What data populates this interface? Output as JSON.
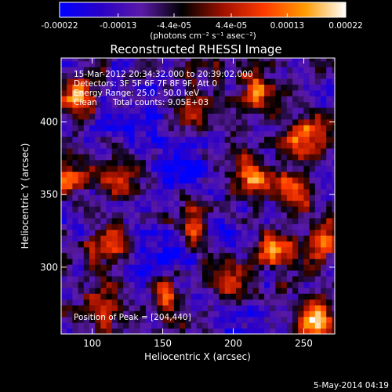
{
  "chart_data": {
    "type": "heatmap",
    "title": "Reconstructed RHESSI Image",
    "xlabel": "Heliocentric X (arcsec)",
    "ylabel": "Heliocentric Y (arcsec)",
    "xlim": [
      78,
      272
    ],
    "ylim": [
      254,
      444
    ],
    "x_ticks": [
      100,
      150,
      200,
      250
    ],
    "y_ticks": [
      300,
      350,
      400
    ],
    "colorbar": {
      "range": [
        -0.00022,
        0.00022
      ],
      "tick_values": [
        -0.00022,
        -0.00013,
        -4.4e-05,
        4.4e-05,
        0.00013,
        0.00022
      ],
      "tick_labels": [
        "-0.00022",
        "-0.00013",
        "-4.4e-05",
        "4.4e-05",
        "0.00013",
        "0.00022"
      ],
      "unit_label": "(photons cm⁻² s⁻¹ asec⁻²)",
      "colors": [
        "#0000ff",
        "#2a00c8",
        "#5a1aa8",
        "#000000",
        "#a01000",
        "#ff3a00",
        "#ff9a00",
        "#ffffff"
      ]
    },
    "annotations": {
      "time_range": "15-Mar-2012 20:34:32.000 to 20:39:02.000",
      "detectors": "Detectors: 3F 5F 6F 7F 8F 9F, Att 0",
      "energy": "Energy Range: 25.0 - 50.0 keV",
      "algorithm": "Clean",
      "counts": "Total counts: 9.05E+03",
      "peak": "Position of Peak = [204,440]"
    },
    "peak_position": [
      204,
      440
    ],
    "bright_sources": [
      {
        "x": 214,
        "y": 362,
        "level": 0.00022
      },
      {
        "x": 174,
        "y": 330,
        "level": 0.00019
      },
      {
        "x": 260,
        "y": 262,
        "level": 0.00022
      },
      {
        "x": 244,
        "y": 352,
        "level": 0.0002
      },
      {
        "x": 250,
        "y": 390,
        "level": 0.00017
      },
      {
        "x": 90,
        "y": 420,
        "level": 0.00016
      },
      {
        "x": 112,
        "y": 314,
        "level": 0.00016
      },
      {
        "x": 152,
        "y": 282,
        "level": 0.00017
      },
      {
        "x": 218,
        "y": 420,
        "level": 0.00014
      },
      {
        "x": 172,
        "y": 402,
        "level": 0.00014
      },
      {
        "x": 230,
        "y": 312,
        "level": 0.00016
      },
      {
        "x": 122,
        "y": 362,
        "level": 0.00013
      },
      {
        "x": 264,
        "y": 320,
        "level": 0.00013
      },
      {
        "x": 197,
        "y": 292,
        "level": 0.00013
      },
      {
        "x": 86,
        "y": 362,
        "level": 0.00012
      },
      {
        "x": 108,
        "y": 272,
        "level": 0.00015
      }
    ],
    "dim_regions": [
      {
        "x": 162,
        "y": 378,
        "level": -0.00013
      },
      {
        "x": 150,
        "y": 302,
        "level": -0.00011
      },
      {
        "x": 190,
        "y": 332,
        "level": -9e-05
      },
      {
        "x": 130,
        "y": 402,
        "level": -9e-05
      },
      {
        "x": 200,
        "y": 262,
        "level": -9e-05
      }
    ]
  },
  "footer": {
    "date": "5-May-2014 04:19"
  }
}
